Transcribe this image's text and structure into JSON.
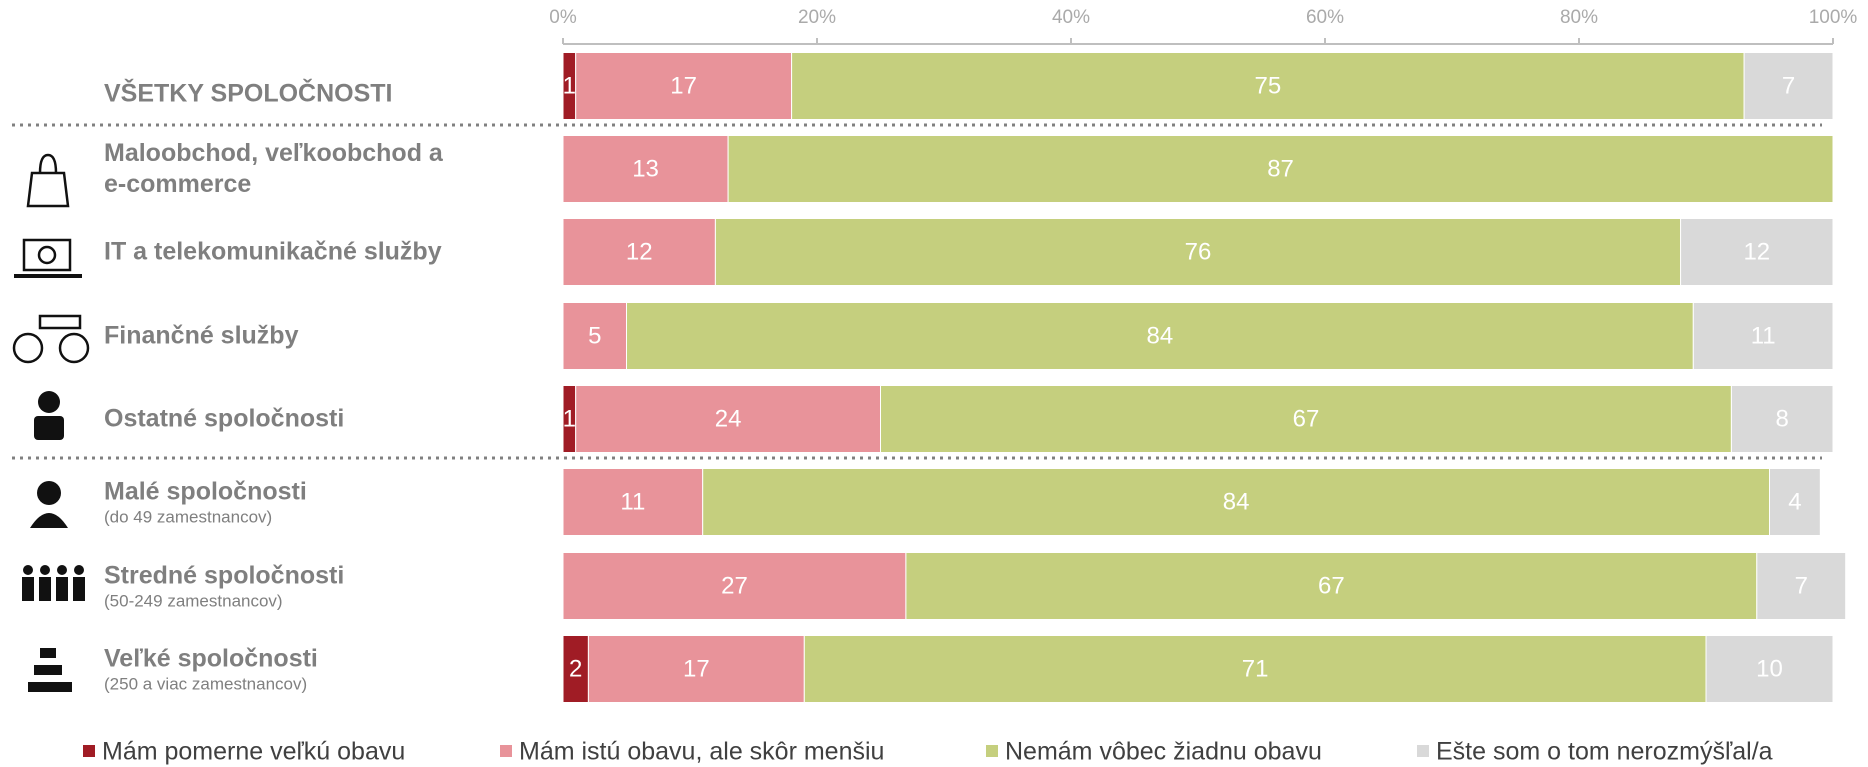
{
  "chart_data": {
    "type": "stacked-bar-horizontal",
    "categories": [
      "VŠETKY SPOLOČNOSTI",
      "Maloobchod, veľkoobchod a e-commerce",
      "IT a telekomunikačné služby",
      "Finančné služby",
      "Ostatné spoločnosti",
      "Malé spoločnosti",
      "Stredné spoločnosti",
      "Veľké spoločnosti"
    ],
    "category_notes": [
      null,
      null,
      null,
      null,
      null,
      "(do 49 zamestnancov)",
      "(50-249 zamestnancov)",
      "(250 a viac zamestnancov)"
    ],
    "series": [
      {
        "name": "Mám pomerne veľkú obavu",
        "color": "#a01c25",
        "values": [
          1,
          null,
          null,
          null,
          1,
          null,
          null,
          2
        ]
      },
      {
        "name": "Mám istú obavu, ale skôr menšiu",
        "color": "#e8939a",
        "values": [
          17,
          13,
          12,
          5,
          24,
          11,
          27,
          17
        ]
      },
      {
        "name": "Nemám vôbec žiadnu obavu",
        "color": "#c5cf7e",
        "values": [
          75,
          87,
          76,
          84,
          67,
          84,
          67,
          71
        ]
      },
      {
        "name": "Ešte som o tom nerozmýšľal/a",
        "color": "#d9d9d9",
        "values": [
          7,
          null,
          12,
          11,
          8,
          4,
          7,
          10
        ]
      }
    ],
    "xlim": [
      0,
      100
    ],
    "xticks": [
      {
        "value": 0,
        "label": "0%"
      },
      {
        "value": 20,
        "label": "20%"
      },
      {
        "value": 40,
        "label": "40%"
      },
      {
        "value": 60,
        "label": "60%"
      },
      {
        "value": 80,
        "label": "80%"
      },
      {
        "value": 100,
        "label": "100%"
      }
    ],
    "legend": "bottom"
  }
}
